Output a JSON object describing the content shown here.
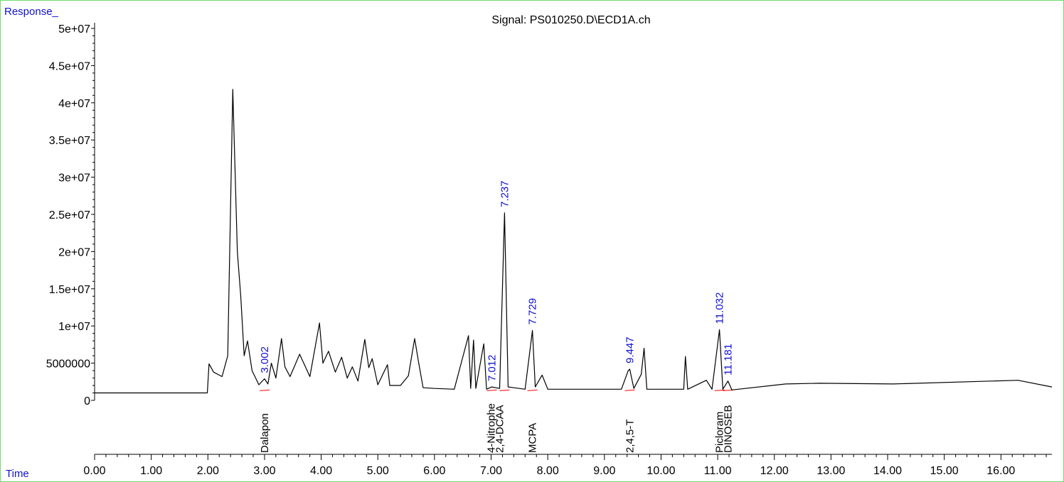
{
  "ui": {
    "response_label": "Response_",
    "time_label": "Time"
  },
  "colors": {
    "frame": "#6fdc6f",
    "trace": "#000000",
    "peak_label": "#1010d0",
    "baseline": "#ff0000",
    "axis": "#000000",
    "corner_label": "#1010d0"
  },
  "chart_data": {
    "type": "line",
    "title": "Signal: PS010250.D\\ECD1A.ch",
    "xlabel": "Time",
    "ylabel": "Response_",
    "xlim": [
      0,
      16.9
    ],
    "ylim": [
      0,
      50000000
    ],
    "x_ticks": [
      "0.00",
      "1.00",
      "2.00",
      "3.00",
      "4.00",
      "5.00",
      "6.00",
      "7.00",
      "8.00",
      "9.00",
      "10.00",
      "11.00",
      "12.00",
      "13.00",
      "14.00",
      "15.00",
      "16.00"
    ],
    "y_ticks": [
      "0",
      "5000000",
      "1e+07",
      "1.5e+07",
      "2e+07",
      "2.5e+07",
      "3e+07",
      "3.5e+07",
      "4e+07",
      "4.5e+07",
      "5e+07"
    ],
    "grid": false,
    "baseline_level": 1000000,
    "trace_keypoints": [
      {
        "x": 0.0,
        "y": 1000000
      },
      {
        "x": 1.99,
        "y": 1000000
      },
      {
        "x": 2.02,
        "y": 4900000
      },
      {
        "x": 2.1,
        "y": 3800000
      },
      {
        "x": 2.25,
        "y": 3200000
      },
      {
        "x": 2.35,
        "y": 6000000
      },
      {
        "x": 2.44,
        "y": 41800000
      },
      {
        "x": 2.52,
        "y": 20000000
      },
      {
        "x": 2.58,
        "y": 14000000
      },
      {
        "x": 2.64,
        "y": 6000000
      },
      {
        "x": 2.7,
        "y": 8000000
      },
      {
        "x": 2.78,
        "y": 4000000
      },
      {
        "x": 2.9,
        "y": 2100000
      },
      {
        "x": 3.0,
        "y": 2900000
      },
      {
        "x": 3.06,
        "y": 2200000
      },
      {
        "x": 3.12,
        "y": 5000000
      },
      {
        "x": 3.2,
        "y": 3000000
      },
      {
        "x": 3.3,
        "y": 8300000
      },
      {
        "x": 3.36,
        "y": 4500000
      },
      {
        "x": 3.45,
        "y": 3200000
      },
      {
        "x": 3.62,
        "y": 6200000
      },
      {
        "x": 3.8,
        "y": 3200000
      },
      {
        "x": 3.97,
        "y": 10400000
      },
      {
        "x": 4.03,
        "y": 5000000
      },
      {
        "x": 4.13,
        "y": 6600000
      },
      {
        "x": 4.25,
        "y": 3800000
      },
      {
        "x": 4.36,
        "y": 5800000
      },
      {
        "x": 4.46,
        "y": 3000000
      },
      {
        "x": 4.55,
        "y": 4500000
      },
      {
        "x": 4.65,
        "y": 2600000
      },
      {
        "x": 4.77,
        "y": 8200000
      },
      {
        "x": 4.84,
        "y": 4400000
      },
      {
        "x": 4.9,
        "y": 5600000
      },
      {
        "x": 5.0,
        "y": 2100000
      },
      {
        "x": 5.17,
        "y": 4800000
      },
      {
        "x": 5.21,
        "y": 2000000
      },
      {
        "x": 5.4,
        "y": 2000000
      },
      {
        "x": 5.54,
        "y": 3300000
      },
      {
        "x": 5.65,
        "y": 8300000
      },
      {
        "x": 5.72,
        "y": 5100000
      },
      {
        "x": 5.8,
        "y": 1700000
      },
      {
        "x": 6.0,
        "y": 1600000
      },
      {
        "x": 6.35,
        "y": 1500000
      },
      {
        "x": 6.6,
        "y": 8700000
      },
      {
        "x": 6.64,
        "y": 1600000
      },
      {
        "x": 6.69,
        "y": 8100000
      },
      {
        "x": 6.73,
        "y": 1600000
      },
      {
        "x": 6.87,
        "y": 7600000
      },
      {
        "x": 6.92,
        "y": 1500000
      },
      {
        "x": 7.01,
        "y": 1800000
      },
      {
        "x": 7.15,
        "y": 1600000
      },
      {
        "x": 7.237,
        "y": 25200000
      },
      {
        "x": 7.3,
        "y": 1800000
      },
      {
        "x": 7.4,
        "y": 1700000
      },
      {
        "x": 7.6,
        "y": 1500000
      },
      {
        "x": 7.729,
        "y": 9400000
      },
      {
        "x": 7.78,
        "y": 1800000
      },
      {
        "x": 7.9,
        "y": 3400000
      },
      {
        "x": 8.0,
        "y": 1500000
      },
      {
        "x": 9.3,
        "y": 1500000
      },
      {
        "x": 9.42,
        "y": 4000000
      },
      {
        "x": 9.447,
        "y": 4200000
      },
      {
        "x": 9.52,
        "y": 1600000
      },
      {
        "x": 9.65,
        "y": 3500000
      },
      {
        "x": 9.7,
        "y": 7000000
      },
      {
        "x": 9.75,
        "y": 1500000
      },
      {
        "x": 10.4,
        "y": 1500000
      },
      {
        "x": 10.43,
        "y": 5900000
      },
      {
        "x": 10.47,
        "y": 1500000
      },
      {
        "x": 10.8,
        "y": 2700000
      },
      {
        "x": 10.9,
        "y": 1500000
      },
      {
        "x": 11.032,
        "y": 9500000
      },
      {
        "x": 11.09,
        "y": 1500000
      },
      {
        "x": 11.181,
        "y": 2600000
      },
      {
        "x": 11.25,
        "y": 1400000
      },
      {
        "x": 12.2,
        "y": 2200000
      },
      {
        "x": 12.8,
        "y": 2300000
      },
      {
        "x": 14.1,
        "y": 2200000
      },
      {
        "x": 16.3,
        "y": 2700000
      },
      {
        "x": 16.9,
        "y": 1800000
      }
    ],
    "labeled_peaks": [
      {
        "rt": "3.002",
        "x": 3.002,
        "y": 2900000
      },
      {
        "rt": "7.012",
        "x": 7.012,
        "y": 1800000
      },
      {
        "rt": "7.237",
        "x": 7.237,
        "y": 25200000
      },
      {
        "rt": "7.729",
        "x": 7.729,
        "y": 9400000
      },
      {
        "rt": "9.447",
        "x": 9.447,
        "y": 4200000
      },
      {
        "rt": "11.032",
        "x": 11.032,
        "y": 9500000
      },
      {
        "rt": "11.181",
        "x": 11.181,
        "y": 2600000
      }
    ],
    "compound_annotations": [
      {
        "name": "Dalapon",
        "x": 3.002
      },
      {
        "name": "4-Nitrophe",
        "x": 7.0
      },
      {
        "name": "2,4-DCAA",
        "x": 7.15
      },
      {
        "name": "MCPA",
        "x": 7.729
      },
      {
        "name": "2,4,5-T",
        "x": 9.447
      },
      {
        "name": "Picloram",
        "x": 11.032
      },
      {
        "name": "DINOSEB",
        "x": 11.181
      }
    ]
  }
}
